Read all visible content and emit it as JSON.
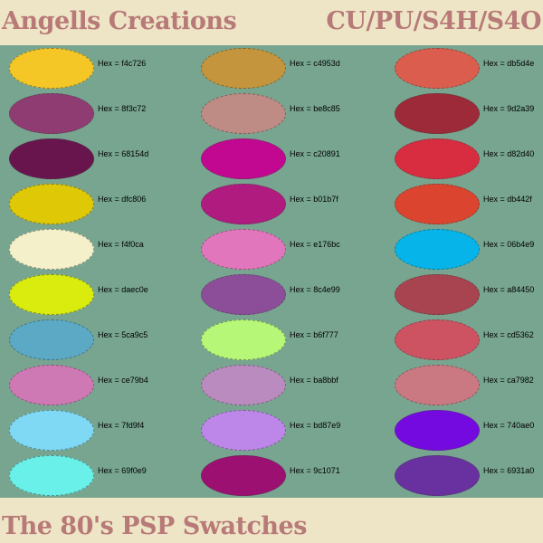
{
  "header": {
    "left_title": "Angells Creations",
    "right_title": "CU/PU/S4H/S4O"
  },
  "footer": {
    "title": "The 80's PSP Swatches"
  },
  "label_prefix": "Hex = ",
  "columns": [
    [
      "f4c726",
      "8f3c72",
      "68154d",
      "dfc806",
      "f4f0ca",
      "daec0e",
      "5ca9c5",
      "ce79b4",
      "7fd9f4",
      "69f0e9"
    ],
    [
      "c4953d",
      "be8c85",
      "c20891",
      "b01b7f",
      "e176bc",
      "8c4e99",
      "b6f777",
      "ba8bbf",
      "bd87e9",
      "9c1071"
    ],
    [
      "db5d4e",
      "9d2a39",
      "d82d40",
      "db442f",
      "06b4e9",
      "a84450",
      "cd5362",
      "ca7982",
      "740ae0",
      "6931a0"
    ]
  ]
}
